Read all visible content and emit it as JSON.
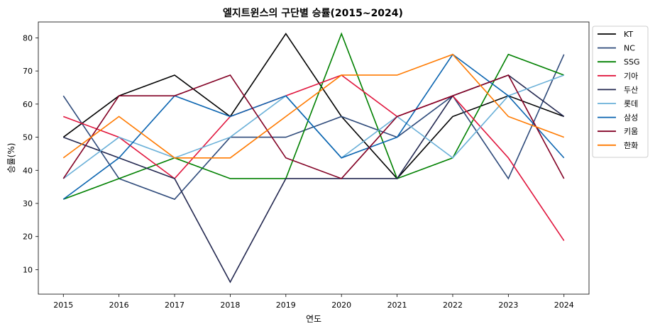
{
  "chart_data": {
    "type": "line",
    "title": "엘지트윈스의 구단별 승률(2015~2024)",
    "xlabel": "연도",
    "ylabel": "승률(%)",
    "x": [
      2015,
      2016,
      2017,
      2018,
      2019,
      2020,
      2021,
      2022,
      2023,
      2024
    ],
    "xlim": [
      2014.55,
      2024.45
    ],
    "ylim": [
      2.6,
      84.8
    ],
    "yticks": [
      10,
      20,
      30,
      40,
      50,
      60,
      70,
      80
    ],
    "grid": false,
    "legend_position": "outside-top-right",
    "series": [
      {
        "name": "KT",
        "color": "#000000",
        "values": [
          50,
          62.5,
          68.75,
          56.25,
          81.25,
          56.25,
          37.5,
          56.25,
          62.5,
          56.25
        ]
      },
      {
        "name": "NC",
        "color": "#2e4a7a",
        "values": [
          62.5,
          37.5,
          31.25,
          50,
          50,
          56.25,
          50,
          62.5,
          37.5,
          75
        ]
      },
      {
        "name": "SSG",
        "color": "#008000",
        "values": [
          31.25,
          37.5,
          43.75,
          37.5,
          37.5,
          81.25,
          37.5,
          43.75,
          75,
          68.75
        ]
      },
      {
        "name": "기아",
        "color": "#e0143c",
        "values": [
          56.25,
          50,
          37.5,
          56.25,
          62.5,
          68.75,
          56.25,
          62.5,
          43.75,
          18.75
        ]
      },
      {
        "name": "두산",
        "color": "#232850",
        "values": [
          50,
          43.75,
          37.5,
          6.25,
          37.5,
          37.5,
          37.5,
          62.5,
          68.75,
          56.25
        ]
      },
      {
        "name": "롯데",
        "color": "#6ab0d8",
        "values": [
          37.5,
          50,
          43.75,
          50,
          62.5,
          43.75,
          56.25,
          43.75,
          62.5,
          68.75
        ]
      },
      {
        "name": "삼성",
        "color": "#0a64b0",
        "values": [
          31.25,
          43.75,
          62.5,
          56.25,
          62.5,
          43.75,
          50,
          75,
          62.5,
          43.75
        ]
      },
      {
        "name": "키움",
        "color": "#820024",
        "values": [
          37.5,
          62.5,
          62.5,
          68.75,
          43.75,
          37.5,
          56.25,
          62.5,
          68.75,
          37.5
        ]
      },
      {
        "name": "한화",
        "color": "#ff7a00",
        "values": [
          43.75,
          56.25,
          43.75,
          43.75,
          56.25,
          68.75,
          68.75,
          75,
          56.25,
          50
        ]
      }
    ]
  }
}
